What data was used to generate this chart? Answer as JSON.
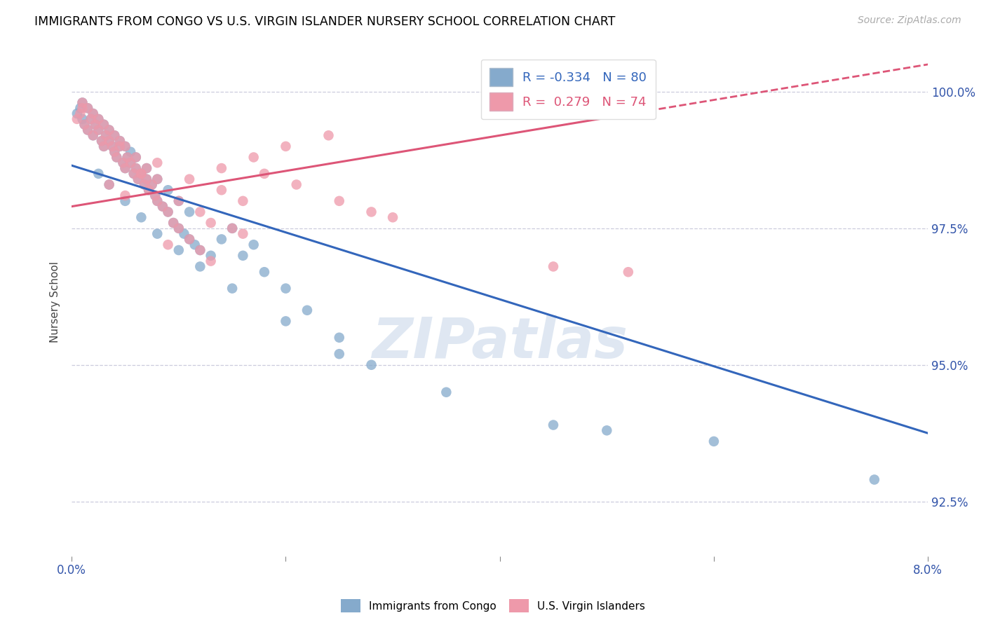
{
  "title": "IMMIGRANTS FROM CONGO VS U.S. VIRGIN ISLANDER NURSERY SCHOOL CORRELATION CHART",
  "source": "Source: ZipAtlas.com",
  "ylabel": "Nursery School",
  "x_min": 0.0,
  "x_max": 8.0,
  "y_min": 91.5,
  "y_max": 100.8,
  "x_ticks": [
    0.0,
    2.0,
    4.0,
    6.0,
    8.0
  ],
  "x_tick_labels": [
    "0.0%",
    "",
    "",
    "",
    "8.0%"
  ],
  "y_ticks": [
    92.5,
    95.0,
    97.5,
    100.0
  ],
  "y_tick_labels": [
    "92.5%",
    "95.0%",
    "97.5%",
    "100.0%"
  ],
  "legend_label1": "Immigrants from Congo",
  "legend_label2": "U.S. Virgin Islanders",
  "R1": -0.334,
  "N1": 80,
  "R2": 0.279,
  "N2": 74,
  "color1": "#85AACC",
  "color2": "#EE99AA",
  "trend_color1": "#3366BB",
  "trend_color2": "#DD5577",
  "watermark": "ZIPatlas",
  "watermark_color": "#C5D5E8",
  "blue_trend_x0": 0.0,
  "blue_trend_y0": 98.65,
  "blue_trend_x1": 8.0,
  "blue_trend_y1": 93.75,
  "pink_trend_x0": 0.0,
  "pink_trend_y0": 97.9,
  "pink_trend_x1": 8.0,
  "pink_trend_y1": 100.5,
  "pink_solid_end_x": 5.2,
  "blue_points_x": [
    0.05,
    0.08,
    0.1,
    0.12,
    0.15,
    0.18,
    0.2,
    0.22,
    0.25,
    0.28,
    0.3,
    0.32,
    0.35,
    0.38,
    0.4,
    0.42,
    0.45,
    0.48,
    0.5,
    0.52,
    0.55,
    0.58,
    0.6,
    0.62,
    0.65,
    0.68,
    0.7,
    0.72,
    0.75,
    0.78,
    0.8,
    0.85,
    0.9,
    0.95,
    1.0,
    1.05,
    1.1,
    1.15,
    1.2,
    1.3,
    0.1,
    0.15,
    0.2,
    0.25,
    0.3,
    0.35,
    0.4,
    0.45,
    0.5,
    0.55,
    0.6,
    0.7,
    0.8,
    0.9,
    1.0,
    1.1,
    1.4,
    1.6,
    1.8,
    2.0,
    2.2,
    2.5,
    1.5,
    1.7,
    2.8,
    3.5,
    4.5,
    5.0,
    6.0,
    7.5,
    0.25,
    0.35,
    0.5,
    0.65,
    0.8,
    1.0,
    1.2,
    1.5,
    2.0,
    2.5
  ],
  "blue_points_y": [
    99.6,
    99.7,
    99.5,
    99.4,
    99.3,
    99.5,
    99.2,
    99.4,
    99.3,
    99.1,
    99.0,
    99.2,
    99.1,
    99.0,
    98.9,
    98.8,
    99.0,
    98.7,
    98.6,
    98.8,
    98.7,
    98.5,
    98.6,
    98.4,
    98.5,
    98.3,
    98.4,
    98.2,
    98.3,
    98.1,
    98.0,
    97.9,
    97.8,
    97.6,
    97.5,
    97.4,
    97.3,
    97.2,
    97.1,
    97.0,
    99.8,
    99.7,
    99.6,
    99.5,
    99.4,
    99.3,
    99.2,
    99.1,
    99.0,
    98.9,
    98.8,
    98.6,
    98.4,
    98.2,
    98.0,
    97.8,
    97.3,
    97.0,
    96.7,
    96.4,
    96.0,
    95.5,
    97.5,
    97.2,
    95.0,
    94.5,
    93.9,
    93.8,
    93.6,
    92.9,
    98.5,
    98.3,
    98.0,
    97.7,
    97.4,
    97.1,
    96.8,
    96.4,
    95.8,
    95.2
  ],
  "pink_points_x": [
    0.05,
    0.08,
    0.1,
    0.12,
    0.15,
    0.18,
    0.2,
    0.22,
    0.25,
    0.28,
    0.3,
    0.32,
    0.35,
    0.38,
    0.4,
    0.42,
    0.45,
    0.48,
    0.5,
    0.52,
    0.55,
    0.58,
    0.6,
    0.62,
    0.65,
    0.68,
    0.7,
    0.72,
    0.75,
    0.78,
    0.8,
    0.85,
    0.9,
    0.95,
    1.0,
    1.1,
    1.2,
    1.3,
    1.4,
    1.6,
    0.1,
    0.15,
    0.2,
    0.25,
    0.3,
    0.35,
    0.4,
    0.45,
    0.5,
    0.6,
    0.7,
    0.8,
    1.0,
    1.2,
    1.5,
    1.8,
    2.1,
    2.5,
    3.0,
    0.35,
    0.5,
    0.65,
    0.8,
    1.1,
    1.4,
    1.7,
    2.0,
    2.4,
    4.5,
    1.6,
    0.9,
    1.3,
    2.8,
    5.2
  ],
  "pink_points_y": [
    99.5,
    99.6,
    99.7,
    99.4,
    99.3,
    99.5,
    99.2,
    99.4,
    99.3,
    99.1,
    99.0,
    99.2,
    99.1,
    99.0,
    98.9,
    98.8,
    99.0,
    98.7,
    98.6,
    98.8,
    98.7,
    98.5,
    98.6,
    98.4,
    98.5,
    98.3,
    98.4,
    98.2,
    98.3,
    98.1,
    98.0,
    97.9,
    97.8,
    97.6,
    97.5,
    97.3,
    97.1,
    96.9,
    98.2,
    98.0,
    99.8,
    99.7,
    99.6,
    99.5,
    99.4,
    99.3,
    99.2,
    99.1,
    99.0,
    98.8,
    98.6,
    98.4,
    98.0,
    97.8,
    97.5,
    98.5,
    98.3,
    98.0,
    97.7,
    98.3,
    98.1,
    98.5,
    98.7,
    98.4,
    98.6,
    98.8,
    99.0,
    99.2,
    96.8,
    97.4,
    97.2,
    97.6,
    97.8,
    96.7
  ]
}
